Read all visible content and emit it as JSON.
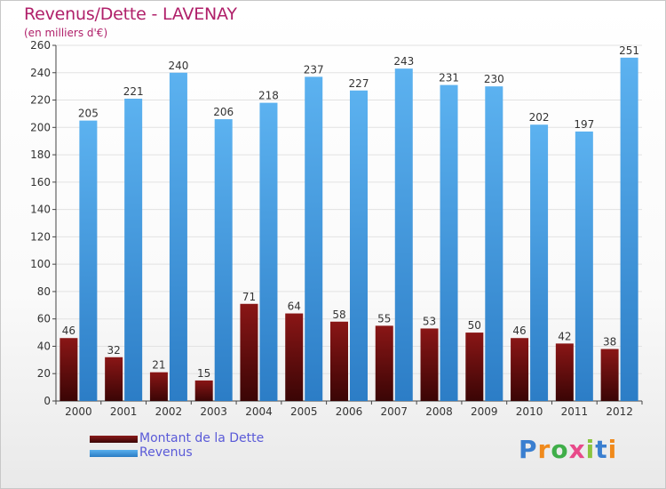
{
  "chart_data": {
    "type": "bar",
    "title": "Revenus/Dette - LAVENAY",
    "subtitle": "(en milliers d'€)",
    "categories": [
      "2000",
      "2001",
      "2002",
      "2003",
      "2004",
      "2005",
      "2006",
      "2007",
      "2008",
      "2009",
      "2010",
      "2011",
      "2012"
    ],
    "series": [
      {
        "name": "Montant de la Dette",
        "color": "#6e1010",
        "values": [
          46,
          32,
          21,
          15,
          71,
          64,
          58,
          55,
          53,
          50,
          46,
          42,
          38
        ]
      },
      {
        "name": "Revenus",
        "color": "#4aa3e6",
        "values": [
          205,
          221,
          240,
          206,
          218,
          237,
          227,
          243,
          231,
          230,
          202,
          197,
          251
        ]
      }
    ],
    "ylim": [
      0,
      260
    ],
    "yticks": [
      0,
      20,
      40,
      60,
      80,
      100,
      120,
      140,
      160,
      180,
      200,
      220,
      240,
      260
    ],
    "grid": true,
    "legend_position": "bottom-left"
  },
  "logo": {
    "text": "Proxiti",
    "colors": [
      "#3a7fd0",
      "#f08a1c",
      "#3fae49",
      "#e84a8a",
      "#8ac43f",
      "#3a7fd0",
      "#f08a1c"
    ]
  }
}
